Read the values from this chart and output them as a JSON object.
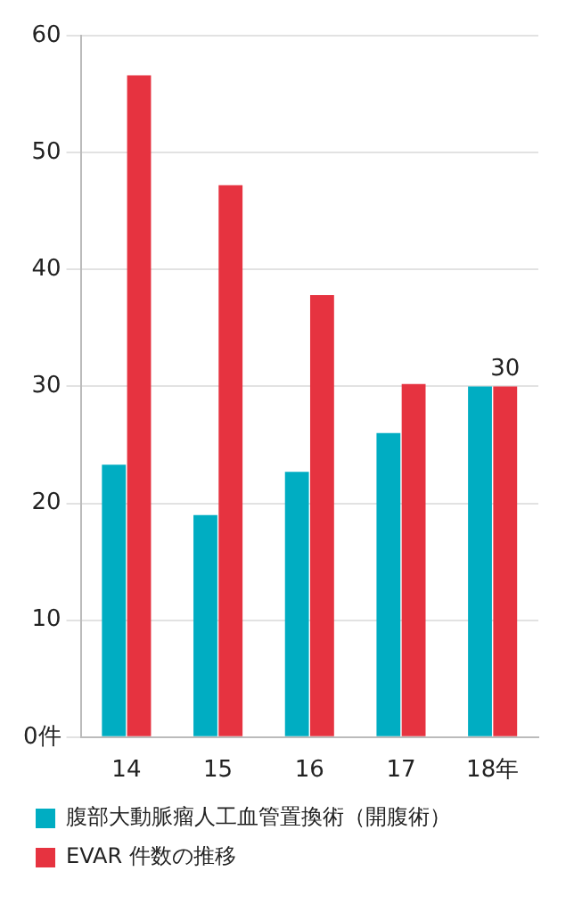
{
  "chart_data": {
    "type": "bar",
    "categories": [
      "14",
      "15",
      "16",
      "17",
      "18年"
    ],
    "series": [
      {
        "name": "腹部大動脈瘤人工血管置換術（開腹術）",
        "color": "#00adc2",
        "values": [
          23.3,
          19,
          22.7,
          26,
          30
        ]
      },
      {
        "name": "EVAR 件数の推移",
        "color": "#e63340",
        "values": [
          56.6,
          47.2,
          37.8,
          30.2,
          30
        ],
        "value_labels": [
          null,
          null,
          null,
          null,
          "30"
        ]
      }
    ],
    "ylim": [
      0,
      60
    ],
    "yticks": [
      {
        "value": 0,
        "label": "0件"
      },
      10,
      20,
      30,
      40,
      50,
      60
    ],
    "grid": "y",
    "legend": "bottom"
  }
}
